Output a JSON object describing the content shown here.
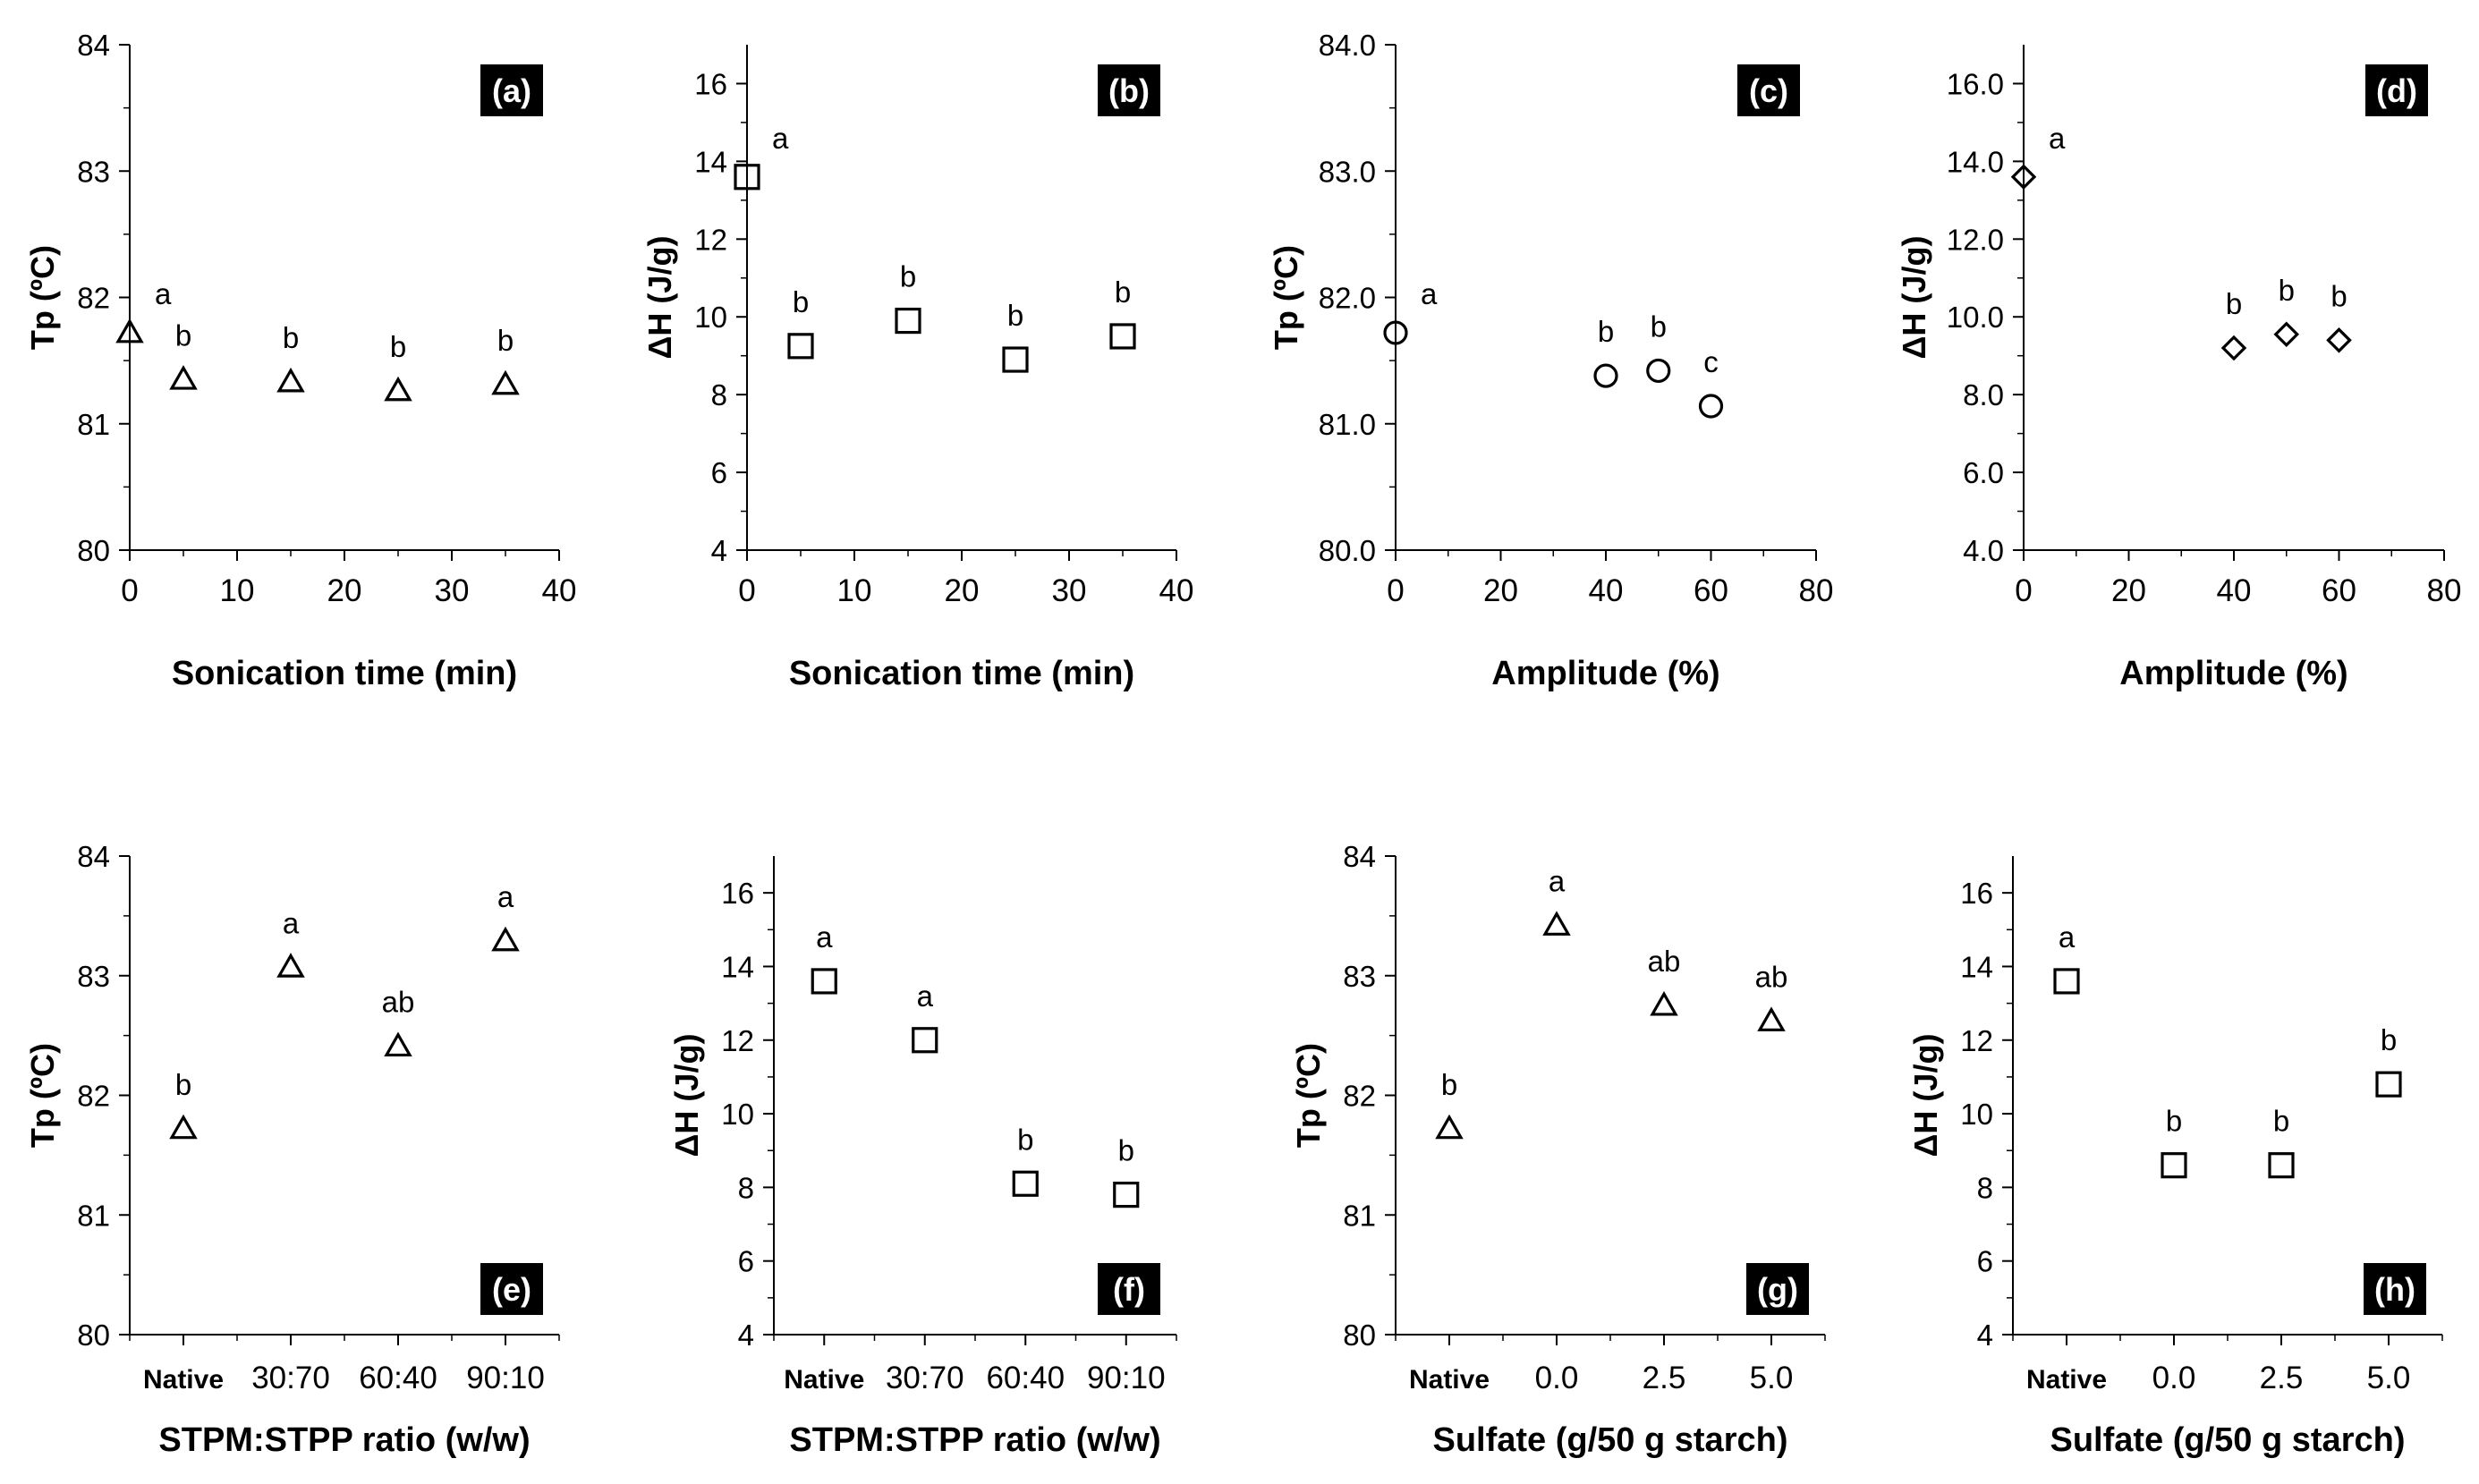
{
  "figure": {
    "charts": [
      {
        "id": "a",
        "label": "(a)",
        "type": "scatter",
        "marker": "triangle",
        "xlabel": "Sonication time (min)",
        "ylabel": "Tp (ºC)",
        "xlim": [
          0,
          40
        ],
        "xticks": [
          0,
          10,
          20,
          30,
          40
        ],
        "xtick_labels": [
          "0",
          "10",
          "20",
          "30",
          "40"
        ],
        "ylim": [
          80,
          84
        ],
        "yticks": [
          80,
          81,
          82,
          83,
          84
        ],
        "ytick_labels": [
          "80",
          "81",
          "82",
          "83",
          "84"
        ],
        "points": [
          {
            "x": 0,
            "y": 81.72,
            "sig": "a"
          },
          {
            "x": 5,
            "y": 81.35,
            "sig": "b"
          },
          {
            "x": 15,
            "y": 81.33,
            "sig": "b"
          },
          {
            "x": 25,
            "y": 81.26,
            "sig": "b"
          },
          {
            "x": 35,
            "y": 81.31,
            "sig": "b"
          }
        ]
      },
      {
        "id": "b",
        "label": "(b)",
        "type": "scatter",
        "marker": "square",
        "xlabel": "Sonication time (min)",
        "ylabel": "ΔH (J/g)",
        "xlim": [
          0,
          40
        ],
        "xticks": [
          0,
          10,
          20,
          30,
          40
        ],
        "xtick_labels": [
          "0",
          "10",
          "20",
          "30",
          "40"
        ],
        "ylim": [
          4,
          17
        ],
        "yticks": [
          4,
          6,
          8,
          10,
          12,
          14,
          16
        ],
        "ytick_labels": [
          "4",
          "6",
          "8",
          "10",
          "12",
          "14",
          "16"
        ],
        "points": [
          {
            "x": 0,
            "y": 13.6,
            "sig": "a"
          },
          {
            "x": 5,
            "y": 9.25,
            "sig": "b"
          },
          {
            "x": 15,
            "y": 9.9,
            "sig": "b"
          },
          {
            "x": 25,
            "y": 8.9,
            "sig": "b"
          },
          {
            "x": 35,
            "y": 9.5,
            "sig": "b"
          }
        ]
      },
      {
        "id": "c",
        "label": "(c)",
        "type": "scatter",
        "marker": "circle",
        "xlabel": "Amplitude (%)",
        "ylabel": "Tp (ºC)",
        "xlim": [
          0,
          80
        ],
        "xticks": [
          0,
          20,
          40,
          60,
          80
        ],
        "xtick_labels": [
          "0",
          "20",
          "40",
          "60",
          "80"
        ],
        "ylim": [
          80,
          84
        ],
        "yticks": [
          80,
          81,
          82,
          83,
          84
        ],
        "ytick_labels": [
          "80.0",
          "81.0",
          "82.0",
          "83.0",
          "84.0"
        ],
        "points": [
          {
            "x": 0,
            "y": 81.72,
            "sig": "a"
          },
          {
            "x": 40,
            "y": 81.38,
            "sig": "b"
          },
          {
            "x": 50,
            "y": 81.42,
            "sig": "b"
          },
          {
            "x": 60,
            "y": 81.14,
            "sig": "c"
          }
        ]
      },
      {
        "id": "d",
        "label": "(d)",
        "type": "scatter",
        "marker": "diamond",
        "xlabel": "Amplitude (%)",
        "ylabel": "ΔH (J/g)",
        "xlim": [
          0,
          80
        ],
        "xticks": [
          0,
          20,
          40,
          60,
          80
        ],
        "xtick_labels": [
          "0",
          "20",
          "40",
          "60",
          "80"
        ],
        "ylim": [
          4,
          17
        ],
        "yticks": [
          4,
          6,
          8,
          10,
          12,
          14,
          16
        ],
        "ytick_labels": [
          "4.0",
          "6.0",
          "8.0",
          "10.0",
          "12.0",
          "14.0",
          "16.0"
        ],
        "points": [
          {
            "x": 0,
            "y": 13.6,
            "sig": "a"
          },
          {
            "x": 40,
            "y": 9.2,
            "sig": "b"
          },
          {
            "x": 50,
            "y": 9.55,
            "sig": "b"
          },
          {
            "x": 60,
            "y": 9.4,
            "sig": "b"
          }
        ]
      },
      {
        "id": "e",
        "label": "(e)",
        "type": "scatter",
        "marker": "triangle",
        "xlabel": "STPM:STPP ratio (w/w)",
        "ylabel": "Tp (ºC)",
        "categories": [
          "Native",
          "30:70",
          "60:40",
          "90:10"
        ],
        "ylim": [
          80,
          84
        ],
        "yticks": [
          80,
          81,
          82,
          83,
          84
        ],
        "ytick_labels": [
          "80",
          "81",
          "82",
          "83",
          "84"
        ],
        "points": [
          {
            "x": 0,
            "y": 81.72,
            "sig": "b"
          },
          {
            "x": 1,
            "y": 83.07,
            "sig": "a"
          },
          {
            "x": 2,
            "y": 82.41,
            "sig": "ab"
          },
          {
            "x": 3,
            "y": 83.29,
            "sig": "a"
          }
        ]
      },
      {
        "id": "f",
        "label": "(f)",
        "type": "scatter",
        "marker": "square",
        "xlabel": "STPM:STPP ratio (w/w)",
        "ylabel": "ΔH (J/g)",
        "categories": [
          "Native",
          "30:70",
          "60:40",
          "90:10"
        ],
        "ylim": [
          4,
          17
        ],
        "yticks": [
          4,
          6,
          8,
          10,
          12,
          14,
          16
        ],
        "ytick_labels": [
          "4",
          "6",
          "8",
          "10",
          "12",
          "14",
          "16"
        ],
        "points": [
          {
            "x": 0,
            "y": 13.6,
            "sig": "a"
          },
          {
            "x": 1,
            "y": 12.0,
            "sig": "a"
          },
          {
            "x": 2,
            "y": 8.1,
            "sig": "b"
          },
          {
            "x": 3,
            "y": 7.8,
            "sig": "b"
          }
        ]
      },
      {
        "id": "g",
        "label": "(g)",
        "type": "scatter",
        "marker": "triangle",
        "xlabel": "Sulfate (g/50 g starch)",
        "ylabel": "Tp (ºC)",
        "categories": [
          "Native",
          "0.0",
          "2.5",
          "5.0"
        ],
        "ylim": [
          80,
          84
        ],
        "yticks": [
          80,
          81,
          82,
          83,
          84
        ],
        "ytick_labels": [
          "80",
          "81",
          "82",
          "83",
          "84"
        ],
        "points": [
          {
            "x": 0,
            "y": 81.72,
            "sig": "b"
          },
          {
            "x": 1,
            "y": 83.42,
            "sig": "a"
          },
          {
            "x": 2,
            "y": 82.75,
            "sig": "ab"
          },
          {
            "x": 3,
            "y": 82.62,
            "sig": "ab"
          }
        ]
      },
      {
        "id": "h",
        "label": "(h)",
        "type": "scatter",
        "marker": "square",
        "xlabel": "Sulfate (g/50 g starch)",
        "ylabel": "ΔH (J/g)",
        "categories": [
          "Native",
          "0.0",
          "2.5",
          "5.0"
        ],
        "ylim": [
          4,
          17
        ],
        "yticks": [
          4,
          6,
          8,
          10,
          12,
          14,
          16
        ],
        "ytick_labels": [
          "4",
          "6",
          "8",
          "10",
          "12",
          "14",
          "16"
        ],
        "points": [
          {
            "x": 0,
            "y": 13.6,
            "sig": "a"
          },
          {
            "x": 1,
            "y": 8.6,
            "sig": "b"
          },
          {
            "x": 2,
            "y": 8.6,
            "sig": "b"
          },
          {
            "x": 3,
            "y": 10.8,
            "sig": "b"
          }
        ]
      }
    ]
  }
}
